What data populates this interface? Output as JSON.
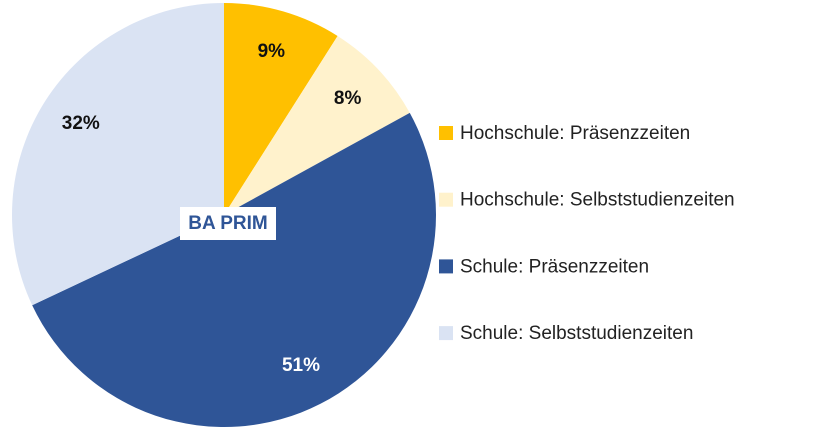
{
  "chart_data": {
    "type": "pie",
    "categories": [
      "Hochschule: Präsenzzeiten",
      "Hochschule: Selbststudienzeiten",
      "Schule: Präsenzzeiten",
      "Schule: Selbststudienzeiten"
    ],
    "values": [
      9,
      8,
      51,
      32
    ],
    "value_labels": [
      "9%",
      "8%",
      "51%",
      "32%"
    ],
    "colors": [
      "#ffc000",
      "#fff2cc",
      "#2f5597",
      "#dae3f3"
    ],
    "center_label": "BA PRIM",
    "legend": "right"
  }
}
